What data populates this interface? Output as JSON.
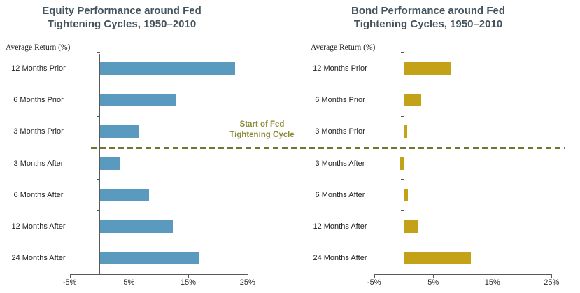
{
  "divider": {
    "label_line1": "Start of Fed",
    "label_line2": "Tightening Cycle",
    "line_color": "#73762f",
    "label_color": "#8b8c3a"
  },
  "chart_data": [
    {
      "type": "bar",
      "orientation": "horizontal",
      "series_name": "equity",
      "title_line1": "Equity Performance around Fed",
      "title_line2": "Tightening Cycles, 1950–2010",
      "axis_label": "Average Return (%)",
      "categories": [
        "12 Months Prior",
        "6 Months Prior",
        "3 Months Prior",
        "3 Months After",
        "6 Months After",
        "12 Months After",
        "24 Months After"
      ],
      "values": [
        22.8,
        12.8,
        6.6,
        3.4,
        8.3,
        12.3,
        16.6
      ],
      "xticks": [
        "-5%",
        "5%",
        "15%",
        "25%"
      ],
      "xlim": [
        -5,
        25
      ],
      "bar_color": "#5a9abe",
      "grid": false,
      "legend": null
    },
    {
      "type": "bar",
      "orientation": "horizontal",
      "series_name": "bond",
      "title_line1": "Bond Performance around Fed",
      "title_line2": "Tightening Cycles, 1950–2010",
      "axis_label": "Average Return (%)",
      "categories": [
        "12 Months Prior",
        "6 Months Prior",
        "3 Months Prior",
        "3 Months After",
        "6 Months After",
        "12 Months After",
        "24 Months After"
      ],
      "values": [
        7.8,
        2.8,
        0.5,
        -0.6,
        0.6,
        2.4,
        11.2
      ],
      "xticks": [
        "-5%",
        "5%",
        "15%",
        "25%"
      ],
      "xlim": [
        -5,
        25
      ],
      "bar_color": "#c3a217",
      "grid": false,
      "legend": null
    }
  ],
  "annotation": {
    "divider_position": "between 3 Months Prior and 3 Months After"
  }
}
